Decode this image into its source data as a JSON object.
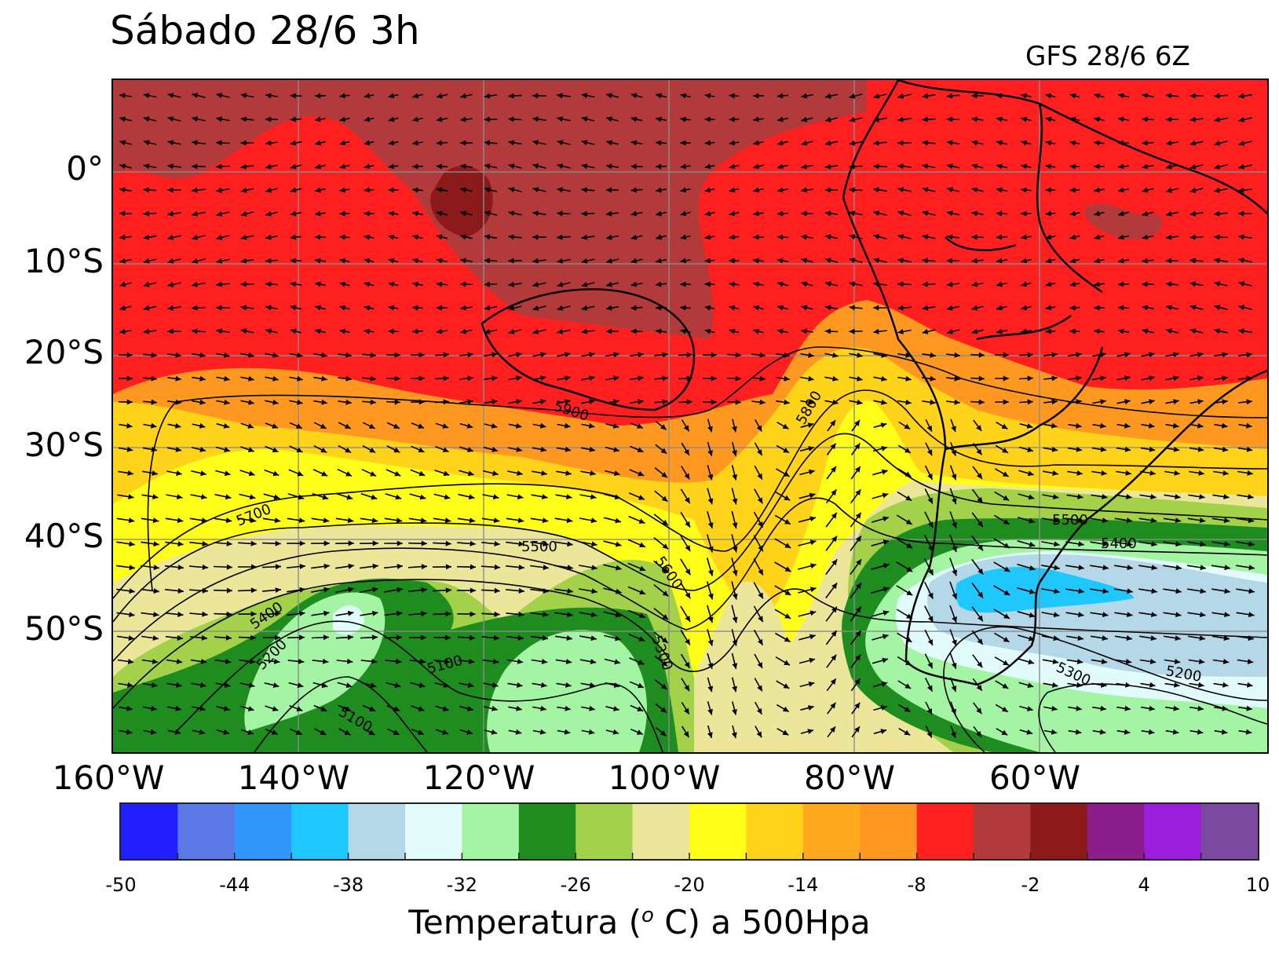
{
  "title": "Sábado 28/6 3h",
  "subtitle": "GFS 28/6 6Z",
  "map": {
    "lat_labels": [
      "0°",
      "10°S",
      "20°S",
      "30°S",
      "40°S",
      "50°S"
    ],
    "lon_labels": [
      "160°W",
      "140°W",
      "120°W",
      "100°W",
      "80°W",
      "60°W"
    ],
    "contour_labels": [
      "5900",
      "5800",
      "5700",
      "5600",
      "5500",
      "5500",
      "5400",
      "5400",
      "5300",
      "5300",
      "5200",
      "5200",
      "5100",
      "5100"
    ],
    "colors": {
      "t_-2_to_-8": "#ff1f1f",
      "t_above_-2": "#b33a3a",
      "t_-8_to_-11": "#ff9820",
      "t_-11_to_-14": "#ffa91f",
      "t_-14_to_-17": "#ffd319",
      "t_-17_to_-20": "#ffff1a",
      "t_-20_to_-23": "#ece69b",
      "t_-23_to_-26": "#a3d24a",
      "t_-26_to_-29": "#1e8c1e",
      "t_-29_to_-32": "#a3f5a3",
      "t_-32_to_-35": "#e2fcfc",
      "t_-35_to_-38": "#b4d8e8",
      "t_-38_to_-41": "#1ec8ff"
    }
  },
  "colorbar": {
    "ticks": [
      "-50",
      "-44",
      "-38",
      "-32",
      "-26",
      "-20",
      "-14",
      "-8",
      "-2",
      "4",
      "10"
    ],
    "colors": [
      "#1f1fff",
      "#5a78e6",
      "#3296ff",
      "#1ec8ff",
      "#b4d8e8",
      "#e2fcfc",
      "#a3f5a3",
      "#1e8c1e",
      "#a3d24a",
      "#ece69b",
      "#ffff1a",
      "#ffd319",
      "#ffa91f",
      "#ff9820",
      "#ff1f1f",
      "#b33a3a",
      "#8c1a1a",
      "#8c1e8c",
      "#9a1edc",
      "#7a4aa0"
    ],
    "label_prefix": "Temperatura (",
    "label_sup": "o",
    "label_suffix": " C) a 500Hpa"
  }
}
